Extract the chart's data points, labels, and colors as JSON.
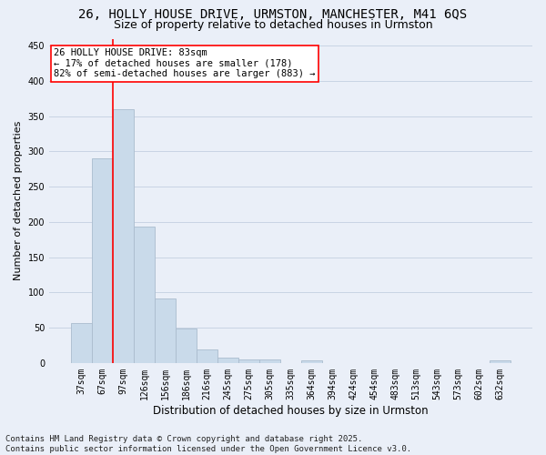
{
  "title_line1": "26, HOLLY HOUSE DRIVE, URMSTON, MANCHESTER, M41 6QS",
  "title_line2": "Size of property relative to detached houses in Urmston",
  "xlabel": "Distribution of detached houses by size in Urmston",
  "ylabel": "Number of detached properties",
  "bar_labels": [
    "37sqm",
    "67sqm",
    "97sqm",
    "126sqm",
    "156sqm",
    "186sqm",
    "216sqm",
    "245sqm",
    "275sqm",
    "305sqm",
    "335sqm",
    "364sqm",
    "394sqm",
    "424sqm",
    "454sqm",
    "483sqm",
    "513sqm",
    "543sqm",
    "573sqm",
    "602sqm",
    "632sqm"
  ],
  "bar_values": [
    57,
    290,
    360,
    193,
    91,
    49,
    19,
    8,
    5,
    5,
    0,
    4,
    0,
    0,
    0,
    0,
    0,
    0,
    0,
    0,
    4
  ],
  "bar_color": "#c9daea",
  "bar_edgecolor": "#aabcce",
  "vline_x": 1.5,
  "vline_color": "red",
  "annotation_text": "26 HOLLY HOUSE DRIVE: 83sqm\n← 17% of detached houses are smaller (178)\n82% of semi-detached houses are larger (883) →",
  "annotation_box_facecolor": "white",
  "annotation_box_edgecolor": "red",
  "annotation_fontsize": 7.5,
  "ylim": [
    0,
    460
  ],
  "yticks": [
    0,
    50,
    100,
    150,
    200,
    250,
    300,
    350,
    400,
    450
  ],
  "grid_color": "#c8d4e4",
  "bg_color": "#eaeff8",
  "footer_text": "Contains HM Land Registry data © Crown copyright and database right 2025.\nContains public sector information licensed under the Open Government Licence v3.0.",
  "title_fontsize": 10,
  "subtitle_fontsize": 9,
  "axis_label_fontsize": 8.5,
  "tick_fontsize": 7,
  "footer_fontsize": 6.5,
  "ylabel_fontsize": 8
}
